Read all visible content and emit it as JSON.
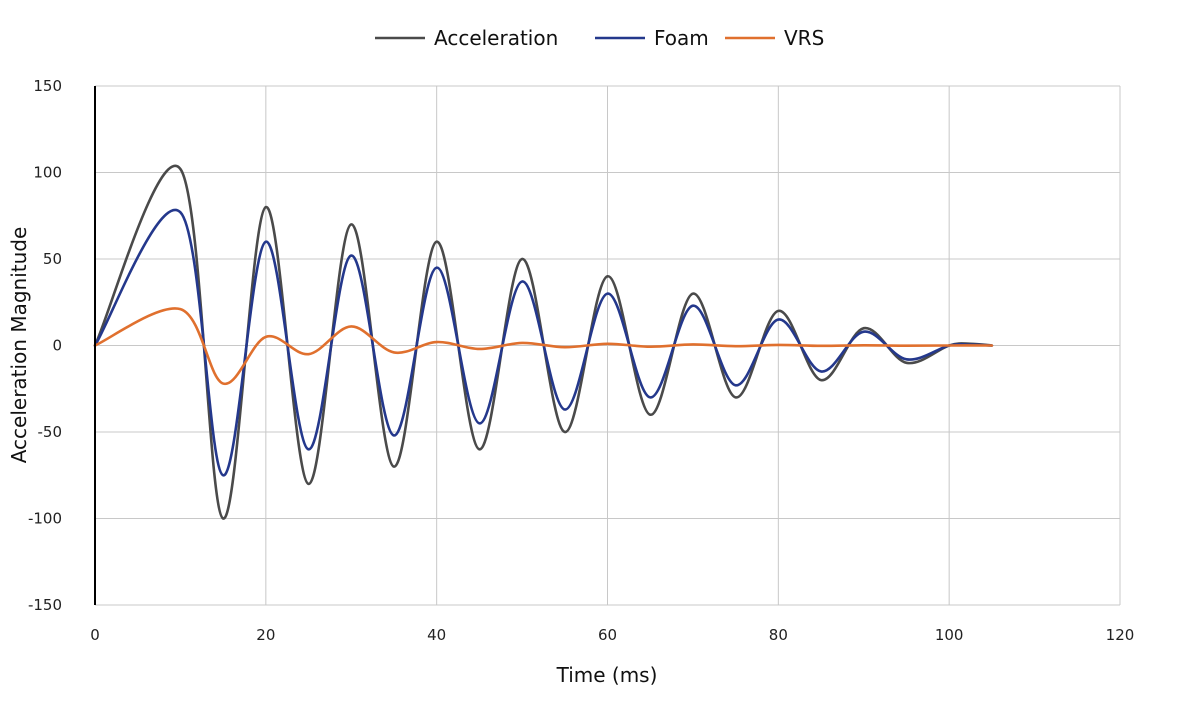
{
  "chart_data": {
    "type": "line",
    "title": "",
    "xlabel": "Time (ms)",
    "ylabel": "Acceleration Magnitude",
    "xlim": [
      0,
      120
    ],
    "ylim": [
      -150,
      150
    ],
    "x_ticks": [
      0,
      20,
      40,
      60,
      80,
      100,
      120
    ],
    "y_ticks": [
      150,
      100,
      50,
      0,
      -50,
      -100,
      -150
    ],
    "grid": true,
    "legend_position": "top-center",
    "series": [
      {
        "name": "Acceleration",
        "color": "#4a4a4a",
        "points": [
          [
            0,
            0
          ],
          [
            10,
            102
          ],
          [
            15,
            -100
          ],
          [
            20,
            80
          ],
          [
            25,
            -80
          ],
          [
            30,
            70
          ],
          [
            35,
            -70
          ],
          [
            40,
            60
          ],
          [
            45,
            -60
          ],
          [
            50,
            50
          ],
          [
            55,
            -50
          ],
          [
            60,
            40
          ],
          [
            65,
            -40
          ],
          [
            70,
            30
          ],
          [
            75,
            -30
          ],
          [
            80,
            20
          ],
          [
            85,
            -20
          ],
          [
            90,
            10
          ],
          [
            95,
            -10
          ],
          [
            100,
            0
          ],
          [
            102.5,
            1
          ],
          [
            105,
            0
          ]
        ]
      },
      {
        "name": "Foam",
        "color": "#24388c",
        "points": [
          [
            0,
            0
          ],
          [
            10,
            77
          ],
          [
            15,
            -75
          ],
          [
            20,
            60
          ],
          [
            25,
            -60
          ],
          [
            30,
            52
          ],
          [
            35,
            -52
          ],
          [
            40,
            45
          ],
          [
            45,
            -45
          ],
          [
            50,
            37
          ],
          [
            55,
            -37
          ],
          [
            60,
            30
          ],
          [
            65,
            -30
          ],
          [
            70,
            23
          ],
          [
            75,
            -23
          ],
          [
            80,
            15
          ],
          [
            85,
            -15
          ],
          [
            90,
            8
          ],
          [
            95,
            -8
          ],
          [
            100,
            0
          ],
          [
            102.5,
            0.5
          ],
          [
            105,
            0
          ]
        ]
      },
      {
        "name": "VRS",
        "color": "#e0702e",
        "points": [
          [
            0,
            0
          ],
          [
            10,
            21
          ],
          [
            15,
            -22
          ],
          [
            20,
            5
          ],
          [
            25,
            -5
          ],
          [
            30,
            11
          ],
          [
            35,
            -4
          ],
          [
            40,
            2
          ],
          [
            45,
            -2
          ],
          [
            50,
            1.5
          ],
          [
            55,
            -1
          ],
          [
            60,
            1
          ],
          [
            65,
            -0.7
          ],
          [
            70,
            0.6
          ],
          [
            75,
            -0.4
          ],
          [
            80,
            0.3
          ],
          [
            85,
            -0.2
          ],
          [
            90,
            0.1
          ],
          [
            95,
            -0.1
          ],
          [
            100,
            0
          ],
          [
            105,
            0
          ]
        ]
      }
    ]
  }
}
